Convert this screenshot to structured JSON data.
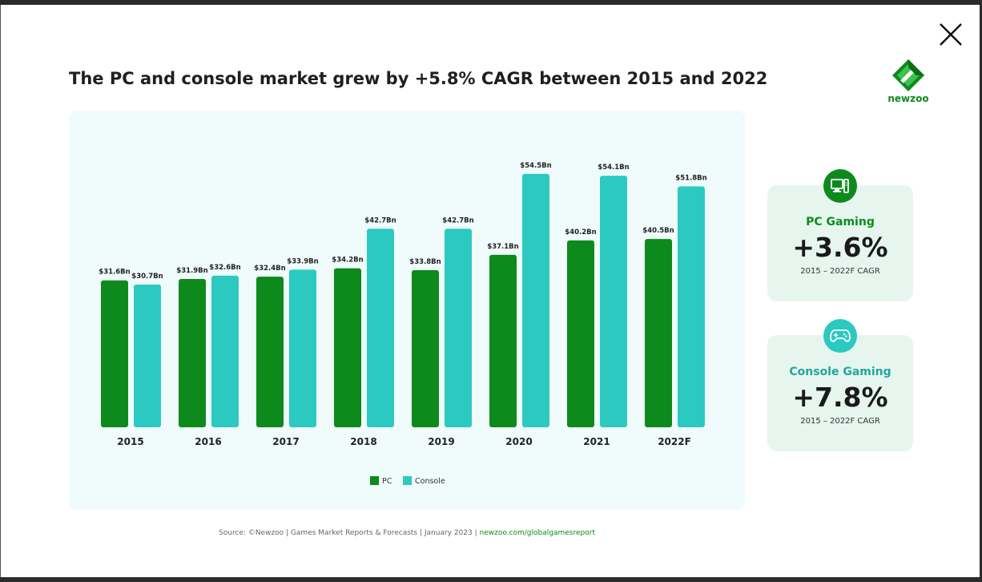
{
  "title": "The PC and console market grew by +5.8% CAGR between 2015 and 2022",
  "logo": {
    "text": "newzoo"
  },
  "colors": {
    "pc": "#0e8a1c",
    "console": "#2cc9c0"
  },
  "close_icon": "close-icon",
  "chart_data": {
    "type": "bar",
    "title": "The PC and console market grew by +5.8% CAGR between 2015 and 2022",
    "categories": [
      "2015",
      "2016",
      "2017",
      "2018",
      "2019",
      "2020",
      "2021",
      "2022F"
    ],
    "series": [
      {
        "name": "PC",
        "values": [
          31.6,
          31.9,
          32.4,
          34.2,
          33.8,
          37.1,
          40.2,
          40.5
        ],
        "labels": [
          "$31.6Bn",
          "$31.9Bn",
          "$32.4Bn",
          "$34.2Bn",
          "$33.8Bn",
          "$37.1Bn",
          "$40.2Bn",
          "$40.5Bn"
        ]
      },
      {
        "name": "Console",
        "values": [
          30.7,
          32.6,
          33.9,
          42.7,
          42.7,
          54.5,
          54.1,
          51.8
        ],
        "labels": [
          "$30.7Bn",
          "$32.6Bn",
          "$33.9Bn",
          "$42.7Bn",
          "$42.7Bn",
          "$54.5Bn",
          "$54.1Bn",
          "$51.8Bn"
        ]
      }
    ],
    "xlabel": "",
    "ylabel": "",
    "ylim": [
      0,
      60
    ],
    "grid": false,
    "legend": "bottom-center"
  },
  "cards": {
    "pc": {
      "label": "PC Gaming",
      "value": "+3.6%",
      "sub": "2015 – 2022F CAGR",
      "icon": "desktop-computer-icon"
    },
    "console": {
      "label": "Console Gaming",
      "value": "+7.8%",
      "sub": "2015 – 2022F CAGR",
      "icon": "gamepad-icon"
    }
  },
  "source": {
    "text": "Source: ©Newzoo | Games Market Reports & Forecasts | January 2023  |  ",
    "link": "newzoo.com/globalgamesreport"
  }
}
